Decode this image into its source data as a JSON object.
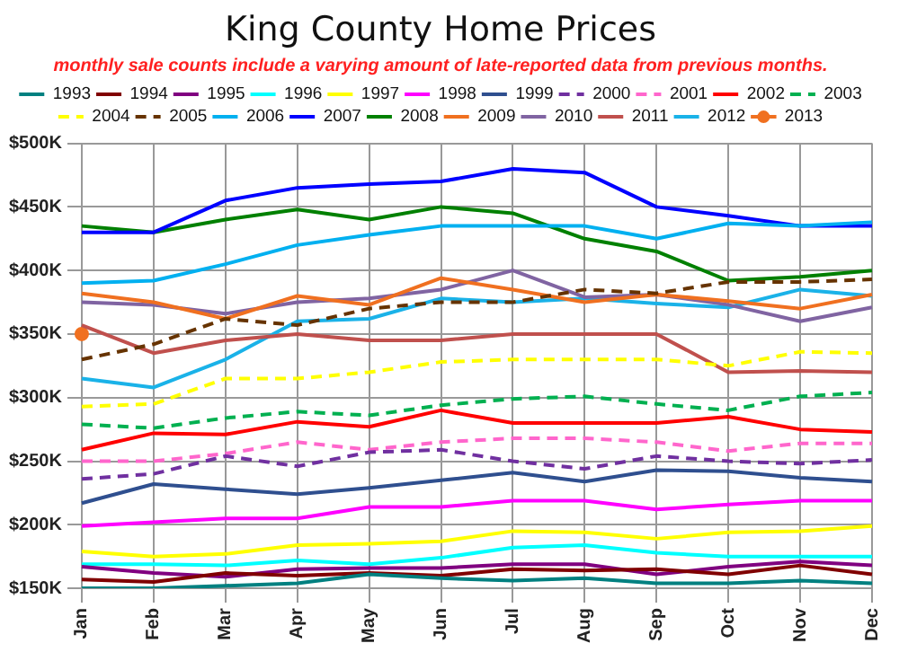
{
  "chart_data": {
    "type": "line",
    "title": "King County Home Prices",
    "subtitle": "monthly sale counts include a varying amount of late-reported data from previous months.",
    "categories": [
      "Jan",
      "Feb",
      "Mar",
      "Apr",
      "May",
      "Jun",
      "Jul",
      "Aug",
      "Sep",
      "Oct",
      "Nov",
      "Dec"
    ],
    "series": [
      {
        "name": "1993",
        "color": "#008080",
        "values": [
          150,
          150,
          152,
          154,
          161,
          158,
          156,
          158,
          154,
          154,
          156,
          154
        ]
      },
      {
        "name": "1994",
        "color": "#800000",
        "values": [
          157,
          155,
          162,
          160,
          162,
          160,
          165,
          164,
          165,
          161,
          168,
          161
        ]
      },
      {
        "name": "1995",
        "color": "#800080",
        "values": [
          167,
          162,
          159,
          165,
          166,
          166,
          169,
          169,
          161,
          167,
          171,
          168
        ]
      },
      {
        "name": "1996",
        "color": "#00ffff",
        "values": [
          169,
          169,
          168,
          172,
          169,
          174,
          182,
          184,
          178,
          175,
          175,
          175
        ]
      },
      {
        "name": "1997",
        "color": "#ffff00",
        "values": [
          179,
          175,
          177,
          184,
          185,
          187,
          195,
          194,
          189,
          194,
          195,
          199
        ]
      },
      {
        "name": "1998",
        "color": "#ff00ff",
        "values": [
          199,
          202,
          205,
          205,
          214,
          214,
          219,
          219,
          212,
          216,
          219,
          219
        ]
      },
      {
        "name": "1999",
        "color": "#2f4f8f",
        "values": [
          217,
          232,
          228,
          224,
          229,
          235,
          241,
          234,
          243,
          242,
          237,
          234
        ]
      },
      {
        "name": "2000",
        "color": "#7030a0",
        "line_style": "dashed",
        "values": [
          236,
          240,
          254,
          246,
          257,
          259,
          250,
          244,
          254,
          250,
          248,
          251
        ]
      },
      {
        "name": "2001",
        "color": "#ff66cc",
        "line_style": "dashed",
        "values": [
          250,
          250,
          256,
          265,
          259,
          265,
          268,
          268,
          265,
          258,
          264,
          264
        ]
      },
      {
        "name": "2002",
        "color": "#ff0000",
        "values": [
          259,
          272,
          271,
          281,
          277,
          290,
          280,
          280,
          280,
          285,
          275,
          273
        ]
      },
      {
        "name": "2003",
        "color": "#00b050",
        "line_style": "dashed",
        "values": [
          279,
          276,
          284,
          289,
          286,
          294,
          299,
          301,
          295,
          290,
          301,
          304
        ]
      },
      {
        "name": "2004",
        "color": "#ffff00",
        "line_style": "dashed",
        "values": [
          293,
          295,
          315,
          315,
          320,
          328,
          330,
          330,
          330,
          325,
          336,
          335
        ]
      },
      {
        "name": "2005",
        "color": "#663300",
        "line_style": "dashed",
        "values": [
          330,
          342,
          362,
          357,
          370,
          375,
          375,
          385,
          382,
          391,
          391,
          393
        ]
      },
      {
        "name": "2006",
        "color": "#00b0f0",
        "values": [
          390,
          392,
          405,
          420,
          428,
          435,
          435,
          435,
          425,
          437,
          435,
          438
        ]
      },
      {
        "name": "2007",
        "color": "#0000ff",
        "values": [
          430,
          430,
          455,
          465,
          468,
          470,
          480,
          477,
          450,
          443,
          435,
          435
        ]
      },
      {
        "name": "2008",
        "color": "#008000",
        "values": [
          435,
          430,
          440,
          448,
          440,
          450,
          445,
          425,
          415,
          392,
          395,
          400
        ]
      },
      {
        "name": "2009",
        "color": "#f07020",
        "values": [
          382,
          375,
          362,
          380,
          373,
          394,
          385,
          375,
          381,
          376,
          370,
          381
        ]
      },
      {
        "name": "2010",
        "color": "#8064a2",
        "values": [
          375,
          373,
          366,
          375,
          378,
          385,
          400,
          379,
          381,
          373,
          360,
          371
        ]
      },
      {
        "name": "2011",
        "color": "#c0504d",
        "values": [
          357,
          335,
          345,
          350,
          345,
          345,
          350,
          350,
          350,
          320,
          321,
          320
        ]
      },
      {
        "name": "2012",
        "color": "#1ab2e8",
        "values": [
          315,
          308,
          330,
          360,
          362,
          378,
          375,
          378,
          374,
          371,
          385,
          380
        ]
      },
      {
        "name": "2013",
        "color": "#f07020",
        "line_style": "dashed",
        "marker": "circle",
        "values": [
          350,
          null,
          null,
          null,
          null,
          null,
          null,
          null,
          null,
          null,
          null,
          null
        ]
      }
    ],
    "ylim": [
      150,
      500
    ],
    "yticks": [
      {
        "value": 150,
        "label": "$150K"
      },
      {
        "value": 200,
        "label": "$200K"
      },
      {
        "value": 250,
        "label": "$250K"
      },
      {
        "value": 300,
        "label": "$300K"
      },
      {
        "value": 350,
        "label": "$350K"
      },
      {
        "value": 400,
        "label": "$400K"
      },
      {
        "value": 450,
        "label": "$450K"
      },
      {
        "value": 500,
        "label": "$500K"
      }
    ],
    "grid": true,
    "legend": "top"
  }
}
